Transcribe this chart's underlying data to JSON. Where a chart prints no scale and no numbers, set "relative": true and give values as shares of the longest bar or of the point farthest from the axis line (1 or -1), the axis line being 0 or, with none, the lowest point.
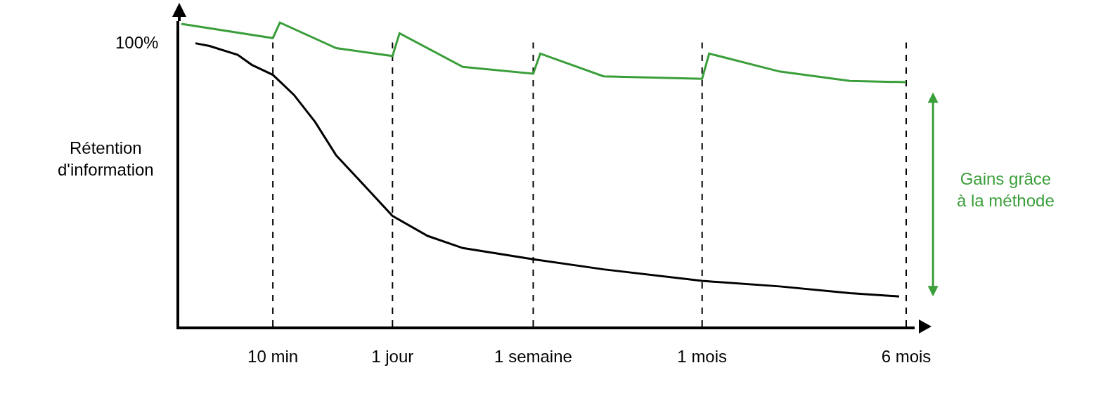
{
  "chart_data": {
    "type": "line",
    "relative": true,
    "ylabel": "Rétention d'information",
    "categories": [
      null,
      null,
      null,
      null,
      null,
      null,
      null,
      null,
      null,
      null,
      null,
      null,
      null,
      "10 min",
      null,
      null,
      null,
      null,
      null,
      null,
      null,
      null,
      null,
      null,
      null,
      null,
      null,
      null,
      null,
      null,
      "1 jour",
      null,
      null,
      null,
      null,
      null,
      null,
      null,
      null,
      null,
      null,
      null,
      null,
      null,
      null,
      null,
      null,
      null,
      null,
      null,
      "1 semaine",
      null,
      null,
      null,
      null,
      null,
      null,
      null,
      null,
      null,
      null,
      null,
      null,
      null,
      null,
      null,
      null,
      null,
      null,
      null,
      null,
      null,
      null,
      null,
      "1 mois",
      null,
      null,
      null,
      null,
      null,
      null,
      null,
      null,
      null,
      null,
      null,
      null,
      null,
      null,
      null,
      null,
      null,
      null,
      null,
      null,
      null,
      null,
      null,
      null,
      null,
      null,
      null,
      null,
      "6 mois"
    ],
    "tick_labels": "x",
    "grid": false,
    "line_style": "solid",
    "marker": "none",
    "series": [
      {
        "color": "#000000",
        "values": [
          null,
          null,
          0.932,
          null,
          0.923,
          null,
          null,
          null,
          0.894,
          null,
          0.861,
          null,
          null,
          0.828,
          null,
          null,
          0.762,
          null,
          null,
          0.673,
          null,
          null,
          0.563,
          null,
          null,
          null,
          0.464,
          null,
          null,
          null,
          0.364,
          null,
          null,
          null,
          null,
          0.298,
          null,
          null,
          null,
          null,
          0.258,
          null,
          null,
          null,
          null,
          null,
          null,
          null,
          null,
          null,
          0.221,
          null,
          null,
          null,
          null,
          null,
          null,
          null,
          null,
          null,
          0.188,
          null,
          null,
          null,
          null,
          null,
          null,
          null,
          null,
          null,
          null,
          null,
          null,
          null,
          0.15,
          null,
          null,
          null,
          null,
          null,
          null,
          null,
          null,
          null,
          null,
          0.132,
          null,
          null,
          null,
          null,
          null,
          null,
          null,
          null,
          null,
          0.11,
          null,
          null,
          null,
          null,
          null,
          null,
          0.099,
          null
        ]
      },
      {
        "color": "#3a9e3a",
        "values": [
          0.996,
          null,
          null,
          null,
          null,
          null,
          null,
          null,
          null,
          null,
          null,
          null,
          null,
          0.949,
          1.0,
          null,
          null,
          null,
          null,
          null,
          null,
          null,
          0.916,
          null,
          null,
          null,
          null,
          null,
          null,
          null,
          0.89,
          0.965,
          null,
          null,
          null,
          null,
          null,
          null,
          null,
          null,
          0.854,
          null,
          null,
          null,
          null,
          null,
          null,
          null,
          null,
          null,
          0.832,
          0.898,
          null,
          null,
          null,
          null,
          null,
          null,
          null,
          null,
          0.823,
          null,
          null,
          null,
          null,
          null,
          null,
          null,
          null,
          null,
          null,
          null,
          null,
          null,
          0.815,
          0.898,
          null,
          null,
          null,
          null,
          null,
          null,
          null,
          null,
          null,
          0.839,
          null,
          null,
          null,
          null,
          null,
          null,
          null,
          null,
          null,
          0.808,
          null,
          null,
          null,
          null,
          null,
          null,
          null,
          0.804
        ]
      }
    ],
    "ref_lines": [
      {
        "axis": "x",
        "value": "10 min",
        "line_style": "dashed",
        "color": "#000000"
      },
      {
        "axis": "x",
        "value": "1 jour",
        "line_style": "dashed",
        "color": "#000000"
      },
      {
        "axis": "x",
        "value": "1 semaine",
        "line_style": "dashed",
        "color": "#000000"
      },
      {
        "axis": "x",
        "value": "1 mois",
        "line_style": "dashed",
        "color": "#000000"
      },
      {
        "axis": "x",
        "value": "6 mois",
        "line_style": "dashed",
        "color": "#000000"
      }
    ],
    "annotations": [
      "100%",
      "Gains grâce à la méthode"
    ]
  }
}
